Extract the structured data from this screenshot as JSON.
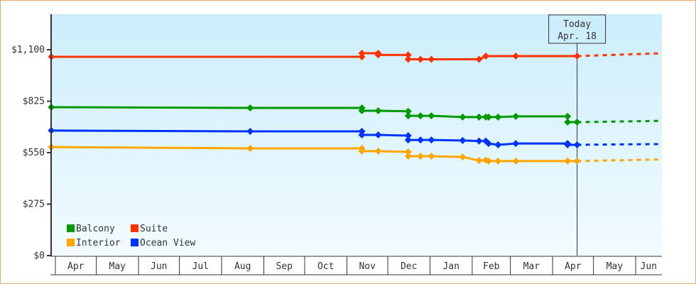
{
  "chart_data": {
    "type": "line",
    "title": "",
    "xlabel": "",
    "ylabel": "",
    "x_unit": "days since Apr 1 (first year)",
    "xlim": [
      -3,
      445
    ],
    "ylim": [
      0,
      1290
    ],
    "y_ticks": [
      {
        "value": 0,
        "label": "$0"
      },
      {
        "value": 275,
        "label": "$275"
      },
      {
        "value": 550,
        "label": "$550"
      },
      {
        "value": 825,
        "label": "$825"
      },
      {
        "value": 1100,
        "label": "$1,100"
      }
    ],
    "x_months": [
      {
        "label": "Apr",
        "start": 0,
        "end": 30
      },
      {
        "label": "May",
        "start": 30,
        "end": 61
      },
      {
        "label": "Jun",
        "start": 61,
        "end": 91
      },
      {
        "label": "Jul",
        "start": 91,
        "end": 122
      },
      {
        "label": "Aug",
        "start": 122,
        "end": 153
      },
      {
        "label": "Sep",
        "start": 153,
        "end": 183
      },
      {
        "label": "Oct",
        "start": 183,
        "end": 214
      },
      {
        "label": "Nov",
        "start": 214,
        "end": 244
      },
      {
        "label": "Dec",
        "start": 244,
        "end": 275
      },
      {
        "label": "Jan",
        "start": 275,
        "end": 306
      },
      {
        "label": "Feb",
        "start": 306,
        "end": 334
      },
      {
        "label": "Mar",
        "start": 334,
        "end": 365
      },
      {
        "label": "Apr",
        "start": 365,
        "end": 395
      },
      {
        "label": "May",
        "start": 395,
        "end": 426
      },
      {
        "label": "Jun",
        "start": 426,
        "end": 445
      }
    ],
    "today": {
      "day": 383,
      "line1": "Today",
      "line2": "Apr. 18"
    },
    "series": [
      {
        "name": "Suite",
        "color": "#ff3300",
        "points": [
          [
            -3,
            1062
          ],
          [
            225,
            1062
          ],
          [
            225,
            1081
          ],
          [
            237,
            1081
          ],
          [
            237,
            1072
          ],
          [
            259,
            1072
          ],
          [
            259,
            1049
          ],
          [
            268,
            1049
          ],
          [
            276,
            1049
          ],
          [
            311,
            1049
          ],
          [
            316,
            1066
          ],
          [
            338,
            1066
          ],
          [
            383,
            1066
          ]
        ],
        "forecast": [
          [
            383,
            1066
          ],
          [
            445,
            1081
          ]
        ]
      },
      {
        "name": "Balcony",
        "color": "#009900",
        "points": [
          [
            -3,
            793
          ],
          [
            143,
            789
          ],
          [
            225,
            789
          ],
          [
            225,
            774
          ],
          [
            237,
            774
          ],
          [
            259,
            771
          ],
          [
            259,
            747
          ],
          [
            268,
            747
          ],
          [
            276,
            747
          ],
          [
            299,
            740
          ],
          [
            311,
            740
          ],
          [
            316,
            740
          ],
          [
            318,
            740
          ],
          [
            325,
            740
          ],
          [
            338,
            744
          ],
          [
            376,
            744
          ],
          [
            376,
            713
          ],
          [
            383,
            713
          ]
        ],
        "forecast": [
          [
            383,
            713
          ],
          [
            445,
            720
          ]
        ]
      },
      {
        "name": "Ocean View",
        "color": "#0033ff",
        "points": [
          [
            -3,
            668
          ],
          [
            143,
            664
          ],
          [
            225,
            664
          ],
          [
            225,
            645
          ],
          [
            237,
            645
          ],
          [
            259,
            641
          ],
          [
            259,
            618
          ],
          [
            268,
            618
          ],
          [
            276,
            618
          ],
          [
            299,
            615
          ],
          [
            311,
            612
          ],
          [
            316,
            612
          ],
          [
            318,
            599
          ],
          [
            325,
            592
          ],
          [
            338,
            599
          ],
          [
            376,
            599
          ],
          [
            376,
            592
          ],
          [
            383,
            592
          ]
        ],
        "forecast": [
          [
            383,
            592
          ],
          [
            445,
            596
          ]
        ]
      },
      {
        "name": "Interior",
        "color": "#ffa500",
        "points": [
          [
            -3,
            580
          ],
          [
            143,
            573
          ],
          [
            225,
            573
          ],
          [
            225,
            558
          ],
          [
            237,
            558
          ],
          [
            259,
            554
          ],
          [
            259,
            531
          ],
          [
            268,
            531
          ],
          [
            276,
            531
          ],
          [
            299,
            527
          ],
          [
            311,
            508
          ],
          [
            316,
            510
          ],
          [
            318,
            505
          ],
          [
            325,
            505
          ],
          [
            338,
            505
          ],
          [
            376,
            505
          ],
          [
            383,
            505
          ]
        ],
        "forecast": [
          [
            383,
            505
          ],
          [
            445,
            514
          ]
        ]
      }
    ],
    "legend": {
      "placement": "bottom-left",
      "order": [
        "Balcony",
        "Suite",
        "Interior",
        "Ocean View"
      ]
    }
  }
}
